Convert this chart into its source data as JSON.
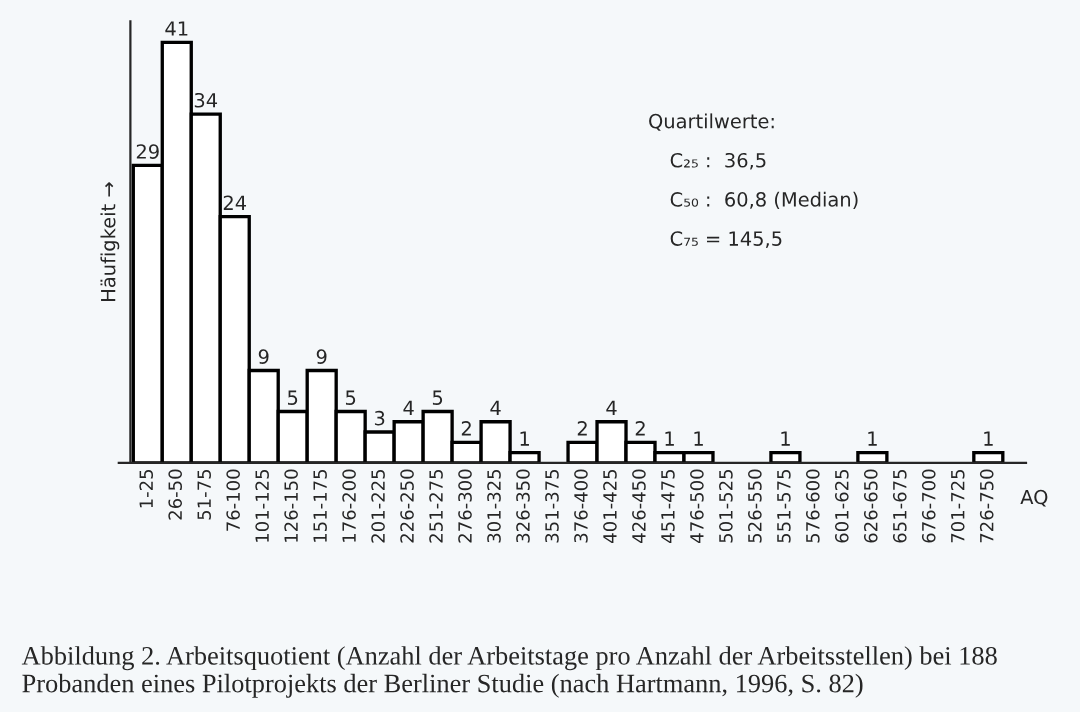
{
  "chart_data": {
    "type": "bar",
    "ylabel": "Häufigkeit →",
    "xlabel": "AQ",
    "color": "#ffffff",
    "categories": [
      "1-25",
      "26-50",
      "51-75",
      "76-100",
      "101-125",
      "126-150",
      "151-175",
      "176-200",
      "201-225",
      "226-250",
      "251-275",
      "276-300",
      "301-325",
      "326-350",
      "351-375",
      "376-400",
      "401-425",
      "426-450",
      "451-475",
      "476-500",
      "501-525",
      "526-550",
      "551-575",
      "576-600",
      "601-625",
      "626-650",
      "651-675",
      "676-700",
      "701-725",
      "726-750"
    ],
    "values": [
      29,
      41,
      34,
      24,
      9,
      5,
      9,
      5,
      3,
      4,
      5,
      2,
      4,
      1,
      0,
      2,
      4,
      2,
      1,
      1,
      0,
      0,
      1,
      0,
      0,
      1,
      0,
      0,
      0,
      1
    ],
    "value_labels": [
      "29",
      "41",
      "34",
      "24",
      "9",
      "5",
      "9",
      "5",
      "3",
      "4",
      "5",
      "2",
      "4",
      "1",
      null,
      "2",
      "4",
      "2",
      "1",
      "1",
      null,
      null,
      "1",
      null,
      null,
      "1",
      null,
      null,
      null,
      "1"
    ],
    "annotations": [
      "Abbildung 2. Arbeitsquotient (Anzahl der Arbeitstage pro Anzahl der Arbeitsstellen) bei 188 Probanden eines Pilotprojekts der Berliner Studie (nach Hartmann, 1996, S. 82)",
      "Quartilwerte:",
      "C₂₅ :  36,5",
      "C₅₀ :  60,8 (Median)",
      "C₇₅ = 145,5"
    ]
  }
}
